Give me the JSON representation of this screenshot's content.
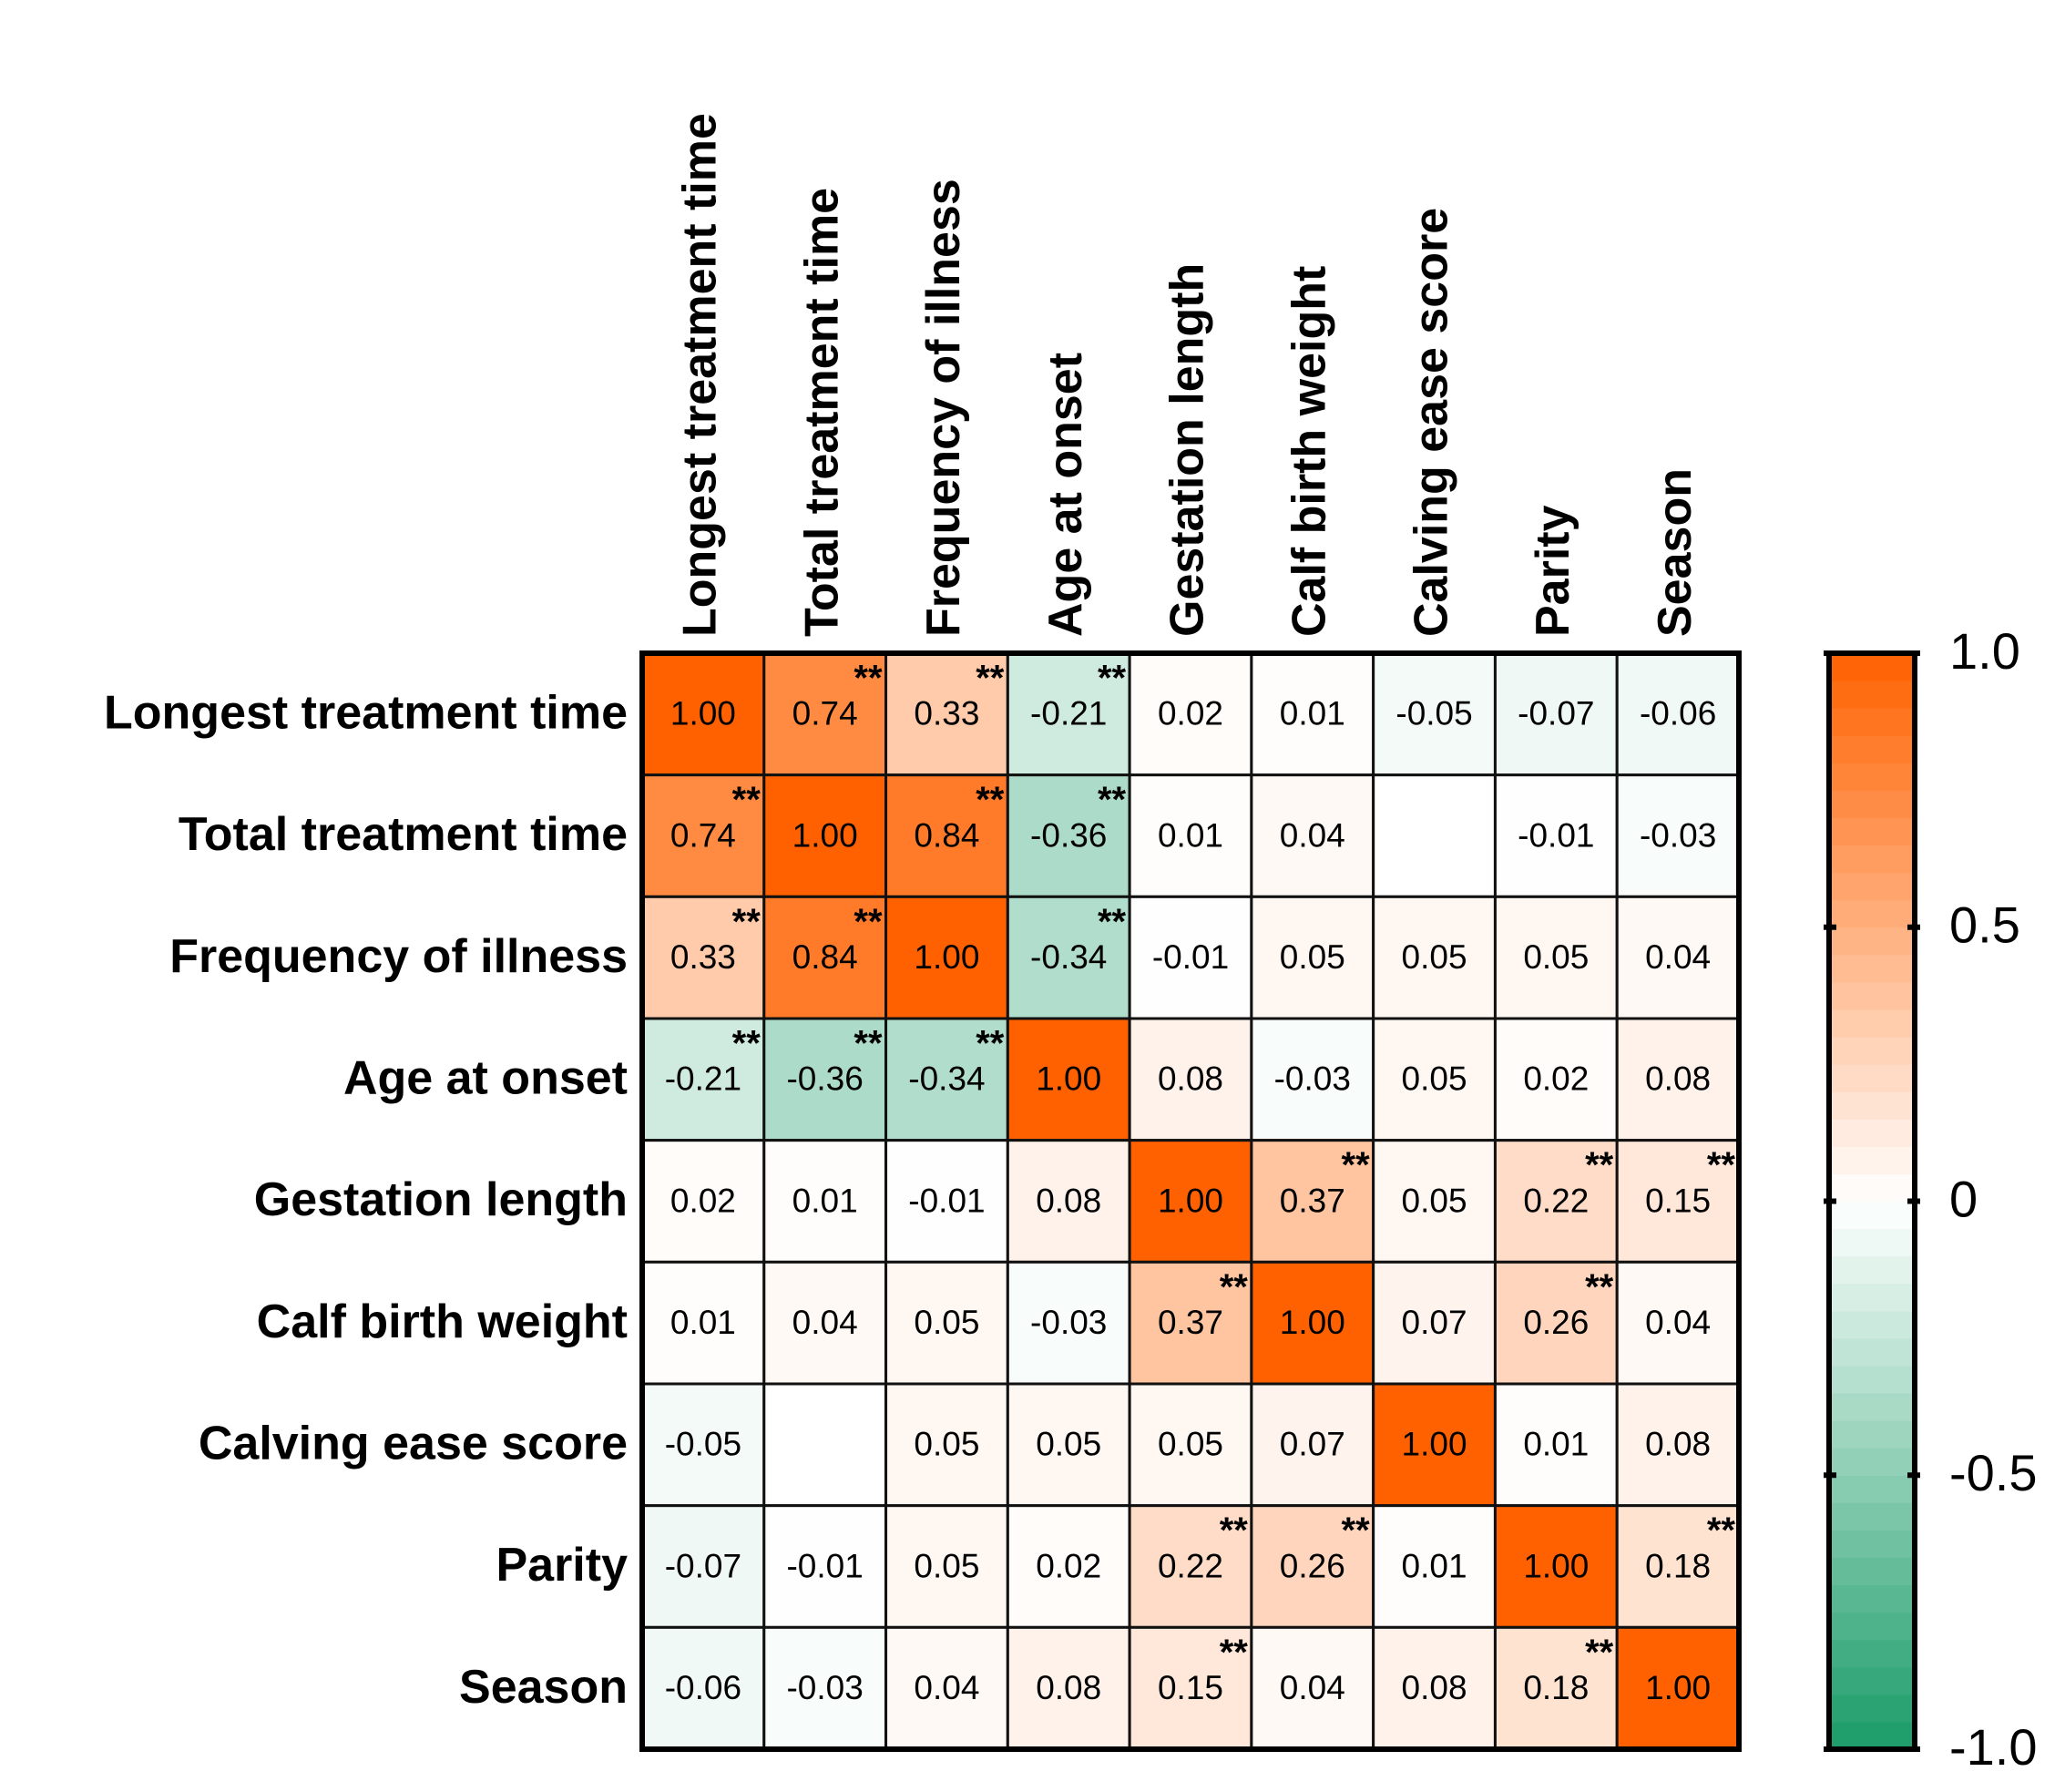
{
  "chart_data": {
    "type": "heatmap",
    "categories": [
      "Longest treatment time",
      "Total treatment time",
      "Frequency of illness",
      "Age at onset",
      "Gestation length",
      "Calf birth weight",
      "Calving ease score",
      "Parity",
      "Season"
    ],
    "values": [
      [
        1.0,
        0.74,
        0.33,
        -0.21,
        0.02,
        0.01,
        -0.05,
        -0.07,
        -0.06
      ],
      [
        0.74,
        1.0,
        0.84,
        -0.36,
        0.01,
        0.04,
        null,
        -0.01,
        -0.03
      ],
      [
        0.33,
        0.84,
        1.0,
        -0.34,
        -0.01,
        0.05,
        0.05,
        0.05,
        0.04
      ],
      [
        -0.21,
        -0.36,
        -0.34,
        1.0,
        0.08,
        -0.03,
        0.05,
        0.02,
        0.08
      ],
      [
        0.02,
        0.01,
        -0.01,
        0.08,
        1.0,
        0.37,
        0.05,
        0.22,
        0.15
      ],
      [
        0.01,
        0.04,
        0.05,
        -0.03,
        0.37,
        1.0,
        0.07,
        0.26,
        0.04
      ],
      [
        -0.05,
        null,
        0.05,
        0.05,
        0.05,
        0.07,
        1.0,
        0.01,
        0.08
      ],
      [
        -0.07,
        -0.01,
        0.05,
        0.02,
        0.22,
        0.26,
        0.01,
        1.0,
        0.18
      ],
      [
        -0.06,
        -0.03,
        0.04,
        0.08,
        0.15,
        0.04,
        0.08,
        0.18,
        1.0
      ]
    ],
    "value_labels": [
      [
        "1.00",
        "0.74",
        "0.33",
        "-0.21",
        "0.02",
        "0.01",
        "-0.05",
        "-0.07",
        "-0.06"
      ],
      [
        "0.74",
        "1.00",
        "0.84",
        "-0.36",
        "0.01",
        "0.04",
        null,
        "-0.01",
        "-0.03"
      ],
      [
        "0.33",
        "0.84",
        "1.00",
        "-0.34",
        "-0.01",
        "0.05",
        "0.05",
        "0.05",
        "0.04"
      ],
      [
        "-0.21",
        "-0.36",
        "-0.34",
        "1.00",
        "0.08",
        "-0.03",
        "0.05",
        "0.02",
        "0.08"
      ],
      [
        "0.02",
        "0.01",
        "-0.01",
        "0.08",
        "1.00",
        "0.37",
        "0.05",
        "0.22",
        "0.15"
      ],
      [
        "0.01",
        "0.04",
        "0.05",
        "-0.03",
        "0.37",
        "1.00",
        "0.07",
        "0.26",
        "0.04"
      ],
      [
        "-0.05",
        null,
        "0.05",
        "0.05",
        "0.05",
        "0.07",
        "1.00",
        "0.01",
        "0.08"
      ],
      [
        "-0.07",
        "-0.01",
        "0.05",
        "0.02",
        "0.22",
        "0.26",
        "0.01",
        "1.00",
        "0.18"
      ],
      [
        "-0.06",
        "-0.03",
        "0.04",
        "0.08",
        "0.15",
        "0.04",
        "0.08",
        "0.18",
        "1.00"
      ]
    ],
    "significance": [
      [
        null,
        "**",
        "**",
        "**",
        null,
        null,
        null,
        null,
        null
      ],
      [
        "**",
        null,
        "**",
        "**",
        null,
        null,
        null,
        null,
        null
      ],
      [
        "**",
        "**",
        null,
        "**",
        null,
        null,
        null,
        null,
        null
      ],
      [
        "**",
        "**",
        "**",
        null,
        null,
        null,
        null,
        null,
        null
      ],
      [
        null,
        null,
        null,
        null,
        null,
        "**",
        null,
        "**",
        "**"
      ],
      [
        null,
        null,
        null,
        null,
        "**",
        null,
        null,
        "**",
        null
      ],
      [
        null,
        null,
        null,
        null,
        null,
        null,
        null,
        null,
        null
      ],
      [
        null,
        null,
        null,
        null,
        "**",
        "**",
        null,
        null,
        "**"
      ],
      [
        null,
        null,
        null,
        null,
        "**",
        null,
        null,
        "**",
        null
      ]
    ],
    "zlim": [
      -1,
      1
    ],
    "zticks": [
      {
        "value": 1,
        "label": "1.0"
      },
      0.5,
      0,
      -0.5,
      {
        "value": -1,
        "label": "-1.0"
      }
    ],
    "colors": {
      "low": "#1a9c68",
      "mid": "#ffffff",
      "high": "#ff6100"
    }
  }
}
